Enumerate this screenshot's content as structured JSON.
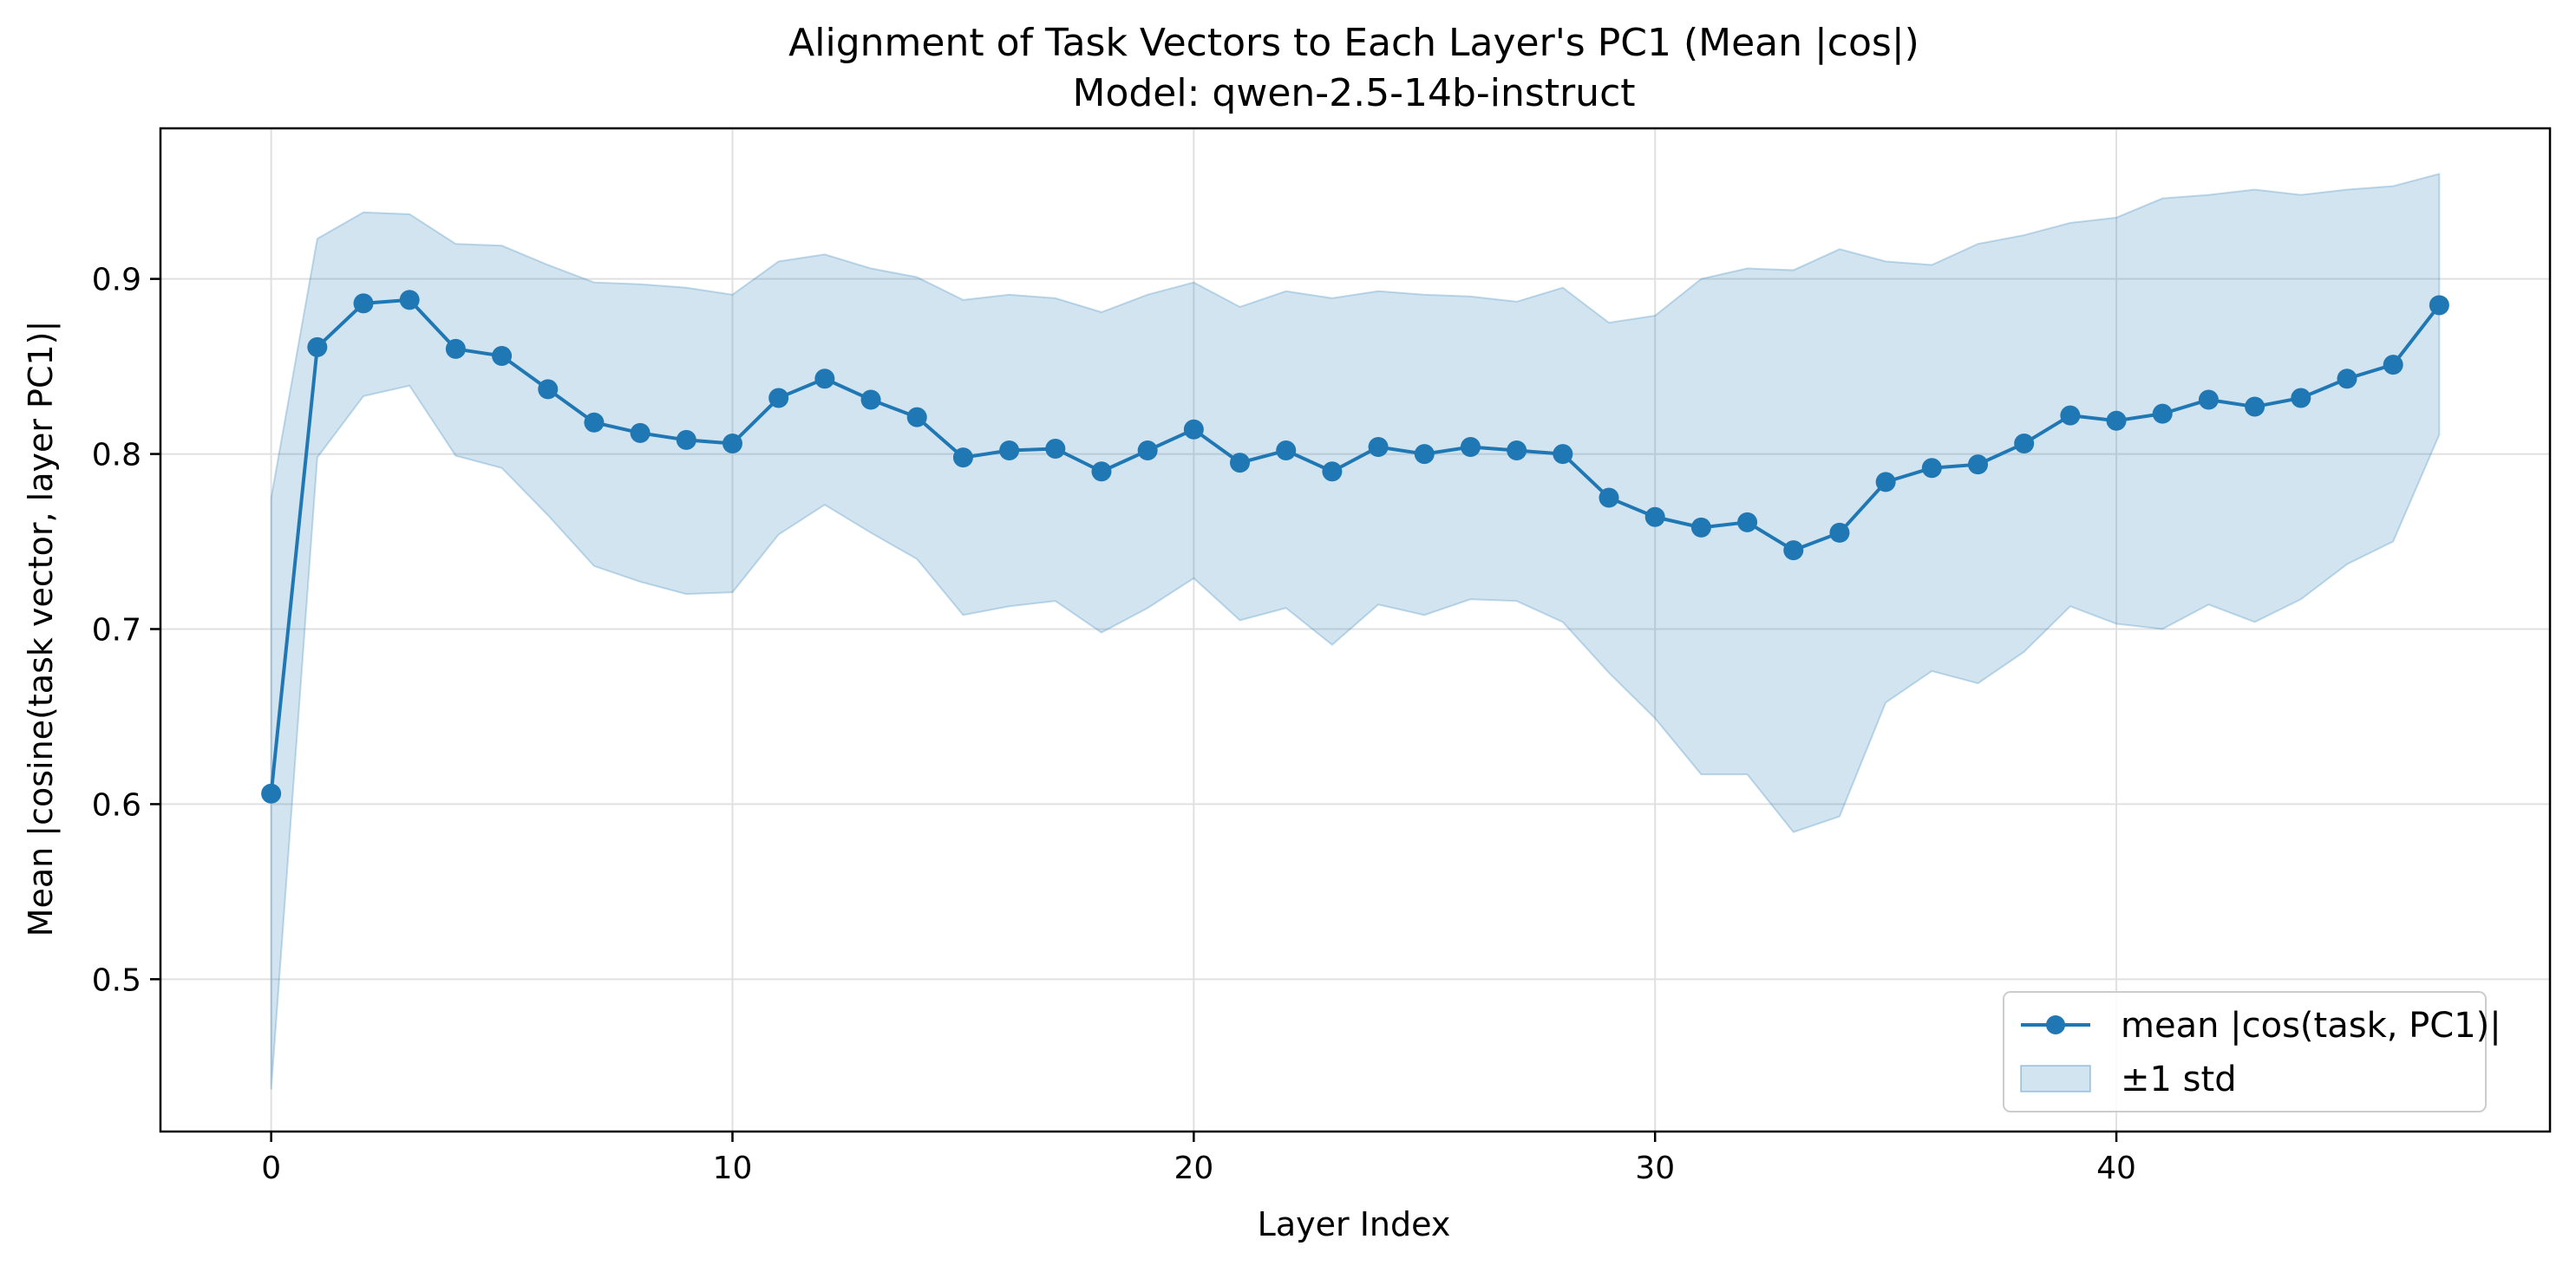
{
  "chart_data": {
    "type": "line",
    "title": "Alignment of Task Vectors to Each Layer's PC1 (Mean |cos|)",
    "subtitle": "Model: qwen-2.5-14b-instruct",
    "xlabel": "Layer Index",
    "ylabel": "Mean |cosine(task vector, layer PC1)|",
    "xlim": [
      -2.4,
      49.4
    ],
    "ylim": [
      0.413,
      0.986
    ],
    "xticks": [
      0,
      10,
      20,
      30,
      40
    ],
    "yticks": [
      0.5,
      0.6,
      0.7,
      0.8,
      0.9
    ],
    "xtick_labels": [
      "0",
      "10",
      "20",
      "30",
      "40"
    ],
    "ytick_labels": [
      "0.5",
      "0.6",
      "0.7",
      "0.8",
      "0.9"
    ],
    "grid": true,
    "legend_position": "lower-right",
    "colors": {
      "line": "#1f77b4",
      "band": "#1f77b4",
      "grid": "#e0e0e0"
    },
    "series": [
      {
        "name": "mean |cos(task, PC1)|",
        "x": [
          0,
          1,
          2,
          3,
          4,
          5,
          6,
          7,
          8,
          9,
          10,
          11,
          12,
          13,
          14,
          15,
          16,
          17,
          18,
          19,
          20,
          21,
          22,
          23,
          24,
          25,
          26,
          27,
          28,
          29,
          30,
          31,
          32,
          33,
          34,
          35,
          36,
          37,
          38,
          39,
          40,
          41,
          42,
          43,
          44,
          45,
          46,
          47
        ],
        "values": [
          0.606,
          0.861,
          0.886,
          0.888,
          0.86,
          0.856,
          0.837,
          0.818,
          0.812,
          0.808,
          0.806,
          0.832,
          0.843,
          0.831,
          0.821,
          0.798,
          0.802,
          0.803,
          0.79,
          0.802,
          0.814,
          0.795,
          0.802,
          0.79,
          0.804,
          0.8,
          0.804,
          0.802,
          0.8,
          0.775,
          0.764,
          0.758,
          0.761,
          0.745,
          0.755,
          0.784,
          0.792,
          0.794,
          0.806,
          0.822,
          0.819,
          0.823,
          0.831,
          0.827,
          0.832,
          0.843,
          0.851,
          0.885
        ]
      }
    ],
    "band": {
      "name": "±1 std",
      "upper": [
        0.775,
        0.923,
        0.938,
        0.937,
        0.92,
        0.919,
        0.908,
        0.898,
        0.897,
        0.895,
        0.891,
        0.91,
        0.914,
        0.906,
        0.901,
        0.888,
        0.891,
        0.889,
        0.881,
        0.891,
        0.898,
        0.884,
        0.893,
        0.889,
        0.893,
        0.891,
        0.89,
        0.887,
        0.895,
        0.875,
        0.879,
        0.9,
        0.906,
        0.905,
        0.917,
        0.91,
        0.908,
        0.92,
        0.925,
        0.932,
        0.935,
        0.946,
        0.948,
        0.951,
        0.948,
        0.951,
        0.953,
        0.96
      ],
      "lower": [
        0.437,
        0.798,
        0.833,
        0.839,
        0.799,
        0.792,
        0.765,
        0.736,
        0.727,
        0.72,
        0.721,
        0.754,
        0.771,
        0.755,
        0.74,
        0.708,
        0.713,
        0.716,
        0.698,
        0.712,
        0.729,
        0.705,
        0.712,
        0.691,
        0.714,
        0.708,
        0.717,
        0.716,
        0.704,
        0.675,
        0.649,
        0.617,
        0.617,
        0.584,
        0.593,
        0.658,
        0.676,
        0.669,
        0.687,
        0.713,
        0.703,
        0.7,
        0.714,
        0.704,
        0.717,
        0.737,
        0.75,
        0.811
      ]
    }
  }
}
